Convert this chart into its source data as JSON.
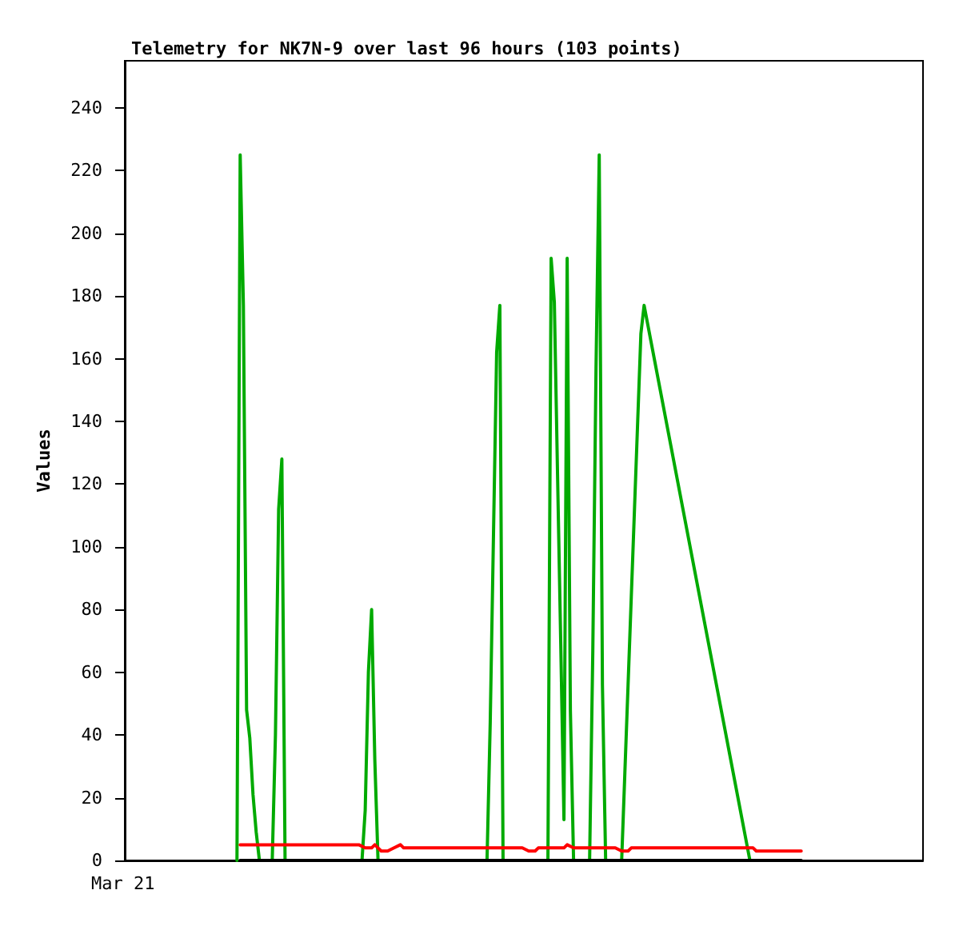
{
  "chart_data": {
    "type": "line",
    "title": "Telemetry for NK7N-9 over last 96 hours (103 points)",
    "ylabel": "Values",
    "annotations": [
      "Mar 21"
    ],
    "tick_labels": "y",
    "categories": [
      null,
      null,
      null,
      null,
      null,
      null,
      null,
      null,
      null,
      null,
      null,
      null,
      null,
      null,
      null,
      null,
      null,
      null,
      null,
      null,
      null,
      null,
      null,
      null,
      null,
      null,
      null,
      null,
      null,
      null,
      null,
      null,
      null,
      null,
      null,
      null,
      null,
      null,
      null,
      null,
      null,
      null,
      null,
      null,
      null,
      null,
      null,
      null,
      null,
      null,
      null,
      null,
      null,
      null,
      null,
      null,
      null,
      null,
      null,
      null,
      null,
      null,
      null,
      null,
      null,
      null,
      null,
      null,
      null,
      null,
      null,
      null,
      null,
      null,
      null,
      null,
      null,
      null,
      null,
      null,
      null,
      null,
      null,
      null,
      null,
      null,
      null,
      null,
      null,
      null,
      null,
      null,
      null,
      null,
      null,
      null,
      null,
      null,
      null,
      null,
      null,
      null,
      null,
      null,
      null,
      null,
      null,
      null,
      null,
      null,
      null,
      null,
      null,
      null,
      null,
      null,
      null,
      null,
      null,
      null,
      null,
      null,
      null,
      null,
      null,
      null,
      null,
      null,
      null,
      null,
      null,
      null,
      null,
      null,
      null,
      null,
      null,
      null,
      null,
      null,
      null,
      null,
      null,
      null,
      null,
      null,
      null,
      null,
      null,
      null,
      null,
      null,
      null,
      null,
      null,
      null,
      null,
      null,
      null,
      null,
      null,
      null,
      null,
      null,
      null,
      null,
      null,
      null,
      null,
      null,
      null,
      null,
      null,
      null,
      null,
      null,
      null,
      null,
      null,
      null,
      null,
      null,
      null,
      null,
      null,
      null,
      null,
      null,
      null,
      null,
      null,
      null,
      null,
      null,
      null,
      null,
      null,
      null,
      null,
      null,
      null,
      null,
      null,
      null,
      null,
      null,
      null,
      null,
      null,
      null,
      null,
      null,
      null,
      null,
      null,
      null,
      null,
      null,
      null,
      null,
      null,
      null,
      null,
      null,
      null,
      null,
      null,
      null,
      null,
      null,
      null,
      null,
      null,
      null,
      null,
      null,
      null,
      null,
      null,
      null,
      null,
      null,
      null,
      null,
      null,
      null,
      null,
      null,
      null,
      null
    ],
    "ylim": [
      0,
      255
    ],
    "yticks": [
      0,
      20,
      40,
      60,
      80,
      100,
      120,
      140,
      160,
      180,
      200,
      220,
      240
    ],
    "grid": false,
    "line_style": "solid",
    "series": [
      {
        "color": "#00aa00",
        "values": [
          null,
          null,
          null,
          null,
          null,
          null,
          null,
          null,
          null,
          null,
          null,
          null,
          null,
          null,
          null,
          null,
          null,
          null,
          null,
          null,
          null,
          null,
          null,
          null,
          null,
          null,
          null,
          null,
          null,
          null,
          null,
          null,
          null,
          null,
          null,
          0,
          225,
          177,
          48,
          39,
          21,
          9,
          0,
          null,
          null,
          null,
          0,
          40,
          112,
          128,
          0,
          null,
          null,
          null,
          null,
          null,
          null,
          null,
          null,
          null,
          null,
          null,
          null,
          null,
          null,
          null,
          null,
          null,
          null,
          null,
          null,
          null,
          null,
          null,
          0,
          16,
          60,
          80,
          32,
          0,
          null,
          null,
          null,
          null,
          null,
          null,
          null,
          null,
          null,
          null,
          null,
          null,
          null,
          null,
          null,
          null,
          null,
          null,
          null,
          null,
          null,
          null,
          null,
          null,
          null,
          null,
          null,
          null,
          null,
          null,
          null,
          null,
          null,
          0,
          44,
          103,
          162,
          177,
          0,
          null,
          null,
          null,
          null,
          null,
          null,
          null,
          null,
          null,
          null,
          null,
          null,
          null,
          0,
          192,
          178,
          123,
          69,
          13,
          192,
          48,
          0,
          null,
          null,
          null,
          null,
          0,
          67,
          157,
          225,
          56,
          0,
          null,
          null,
          null,
          null,
          0,
          28,
          56,
          84,
          112,
          140,
          168,
          177,
          null,
          null,
          null,
          null,
          null,
          null,
          null,
          null,
          null,
          null,
          null,
          null,
          null,
          null,
          null,
          null,
          null,
          null,
          null,
          null,
          null,
          null,
          null,
          null,
          null,
          null,
          null,
          null,
          null,
          null,
          null,
          null,
          0,
          null,
          null,
          null,
          null,
          null,
          null,
          null,
          null,
          null,
          null,
          null,
          null,
          null,
          null,
          null,
          null,
          null,
          null,
          null,
          null,
          null,
          null,
          null,
          null,
          null,
          null,
          null,
          null,
          null,
          null,
          null,
          null,
          null,
          null,
          null,
          null,
          null,
          null,
          null,
          null,
          null,
          null,
          null,
          null,
          null,
          null,
          null,
          null,
          null,
          null,
          null,
          null,
          null,
          null
        ]
      },
      {
        "color": "#ff0000",
        "values": [
          null,
          null,
          null,
          null,
          null,
          null,
          null,
          null,
          null,
          null,
          null,
          null,
          null,
          null,
          null,
          null,
          null,
          null,
          null,
          null,
          null,
          null,
          null,
          null,
          null,
          null,
          null,
          null,
          null,
          null,
          null,
          null,
          null,
          null,
          null,
          null,
          5,
          null,
          null,
          null,
          null,
          null,
          null,
          null,
          null,
          null,
          null,
          null,
          null,
          null,
          null,
          null,
          null,
          null,
          null,
          null,
          null,
          null,
          null,
          null,
          null,
          null,
          null,
          null,
          null,
          null,
          null,
          null,
          null,
          null,
          null,
          null,
          null,
          5,
          null,
          4,
          null,
          4,
          5,
          4,
          3,
          null,
          3,
          null,
          4,
          null,
          5,
          4,
          null,
          null,
          null,
          null,
          null,
          null,
          null,
          null,
          null,
          null,
          null,
          null,
          null,
          null,
          null,
          null,
          null,
          null,
          null,
          null,
          null,
          null,
          null,
          null,
          null,
          null,
          null,
          null,
          null,
          null,
          null,
          null,
          null,
          null,
          null,
          null,
          4,
          null,
          3,
          null,
          3,
          4,
          null,
          null,
          null,
          null,
          null,
          null,
          null,
          4,
          5,
          null,
          4,
          null,
          null,
          null,
          null,
          null,
          null,
          null,
          null,
          null,
          null,
          null,
          null,
          4,
          null,
          3,
          null,
          3,
          4,
          null,
          null,
          null,
          null,
          null,
          null,
          null,
          null,
          null,
          null,
          null,
          null,
          null,
          null,
          null,
          null,
          null,
          null,
          null,
          null,
          null,
          null,
          null,
          null,
          null,
          null,
          null,
          null,
          null,
          null,
          null,
          null,
          null,
          null,
          null,
          null,
          null,
          4,
          3,
          null,
          null,
          null,
          null,
          null,
          null,
          null,
          null,
          null,
          null,
          null,
          null,
          null,
          3,
          null,
          null,
          null,
          null,
          null,
          null,
          null,
          null,
          null,
          null,
          null,
          null,
          null,
          null,
          null,
          null,
          null,
          null,
          null,
          null,
          null,
          null,
          null,
          null,
          null,
          null,
          null,
          null,
          null,
          null,
          null,
          null,
          null,
          null,
          null,
          null,
          null,
          null
        ]
      },
      {
        "color": "#000000",
        "values": [
          null,
          null,
          null,
          null,
          null,
          null,
          null,
          null,
          null,
          null,
          null,
          null,
          null,
          null,
          null,
          null,
          null,
          null,
          null,
          null,
          null,
          null,
          null,
          null,
          null,
          null,
          null,
          null,
          null,
          null,
          null,
          null,
          null,
          null,
          null,
          null,
          0,
          null,
          null,
          null,
          null,
          null,
          null,
          null,
          null,
          null,
          null,
          null,
          null,
          null,
          null,
          null,
          null,
          null,
          null,
          null,
          null,
          null,
          null,
          null,
          null,
          null,
          null,
          null,
          null,
          null,
          null,
          null,
          null,
          null,
          null,
          null,
          null,
          null,
          null,
          null,
          null,
          null,
          null,
          null,
          null,
          null,
          null,
          null,
          null,
          null,
          null,
          null,
          null,
          null,
          null,
          null,
          null,
          null,
          null,
          null,
          null,
          null,
          null,
          null,
          null,
          null,
          null,
          null,
          null,
          null,
          null,
          null,
          null,
          null,
          null,
          null,
          null,
          null,
          null,
          null,
          null,
          null,
          null,
          null,
          null,
          null,
          null,
          null,
          null,
          null,
          null,
          null,
          null,
          null,
          null,
          null,
          null,
          null,
          null,
          null,
          null,
          null,
          null,
          null,
          null,
          null,
          null,
          null,
          null,
          null,
          null,
          null,
          null,
          null,
          null,
          null,
          null,
          null,
          null,
          null,
          null,
          null,
          null,
          null,
          null,
          null,
          null,
          null,
          null,
          null,
          null,
          null,
          null,
          null,
          null,
          null,
          null,
          null,
          null,
          null,
          null,
          null,
          null,
          null,
          null,
          null,
          null,
          null,
          null,
          null,
          null,
          null,
          null,
          null,
          null,
          null,
          null,
          null,
          null,
          null,
          null,
          null,
          null,
          null,
          null,
          null,
          null,
          null,
          null,
          null,
          null,
          null,
          null,
          null,
          null,
          0,
          null,
          null,
          null,
          null,
          null,
          null,
          null,
          null,
          null,
          null,
          null,
          null,
          null,
          null,
          null,
          null,
          null,
          null,
          null,
          null,
          null,
          null,
          null,
          null,
          null,
          null,
          null,
          null,
          null,
          null,
          null,
          null,
          null,
          null,
          null,
          null,
          null,
          null
        ]
      }
    ]
  }
}
